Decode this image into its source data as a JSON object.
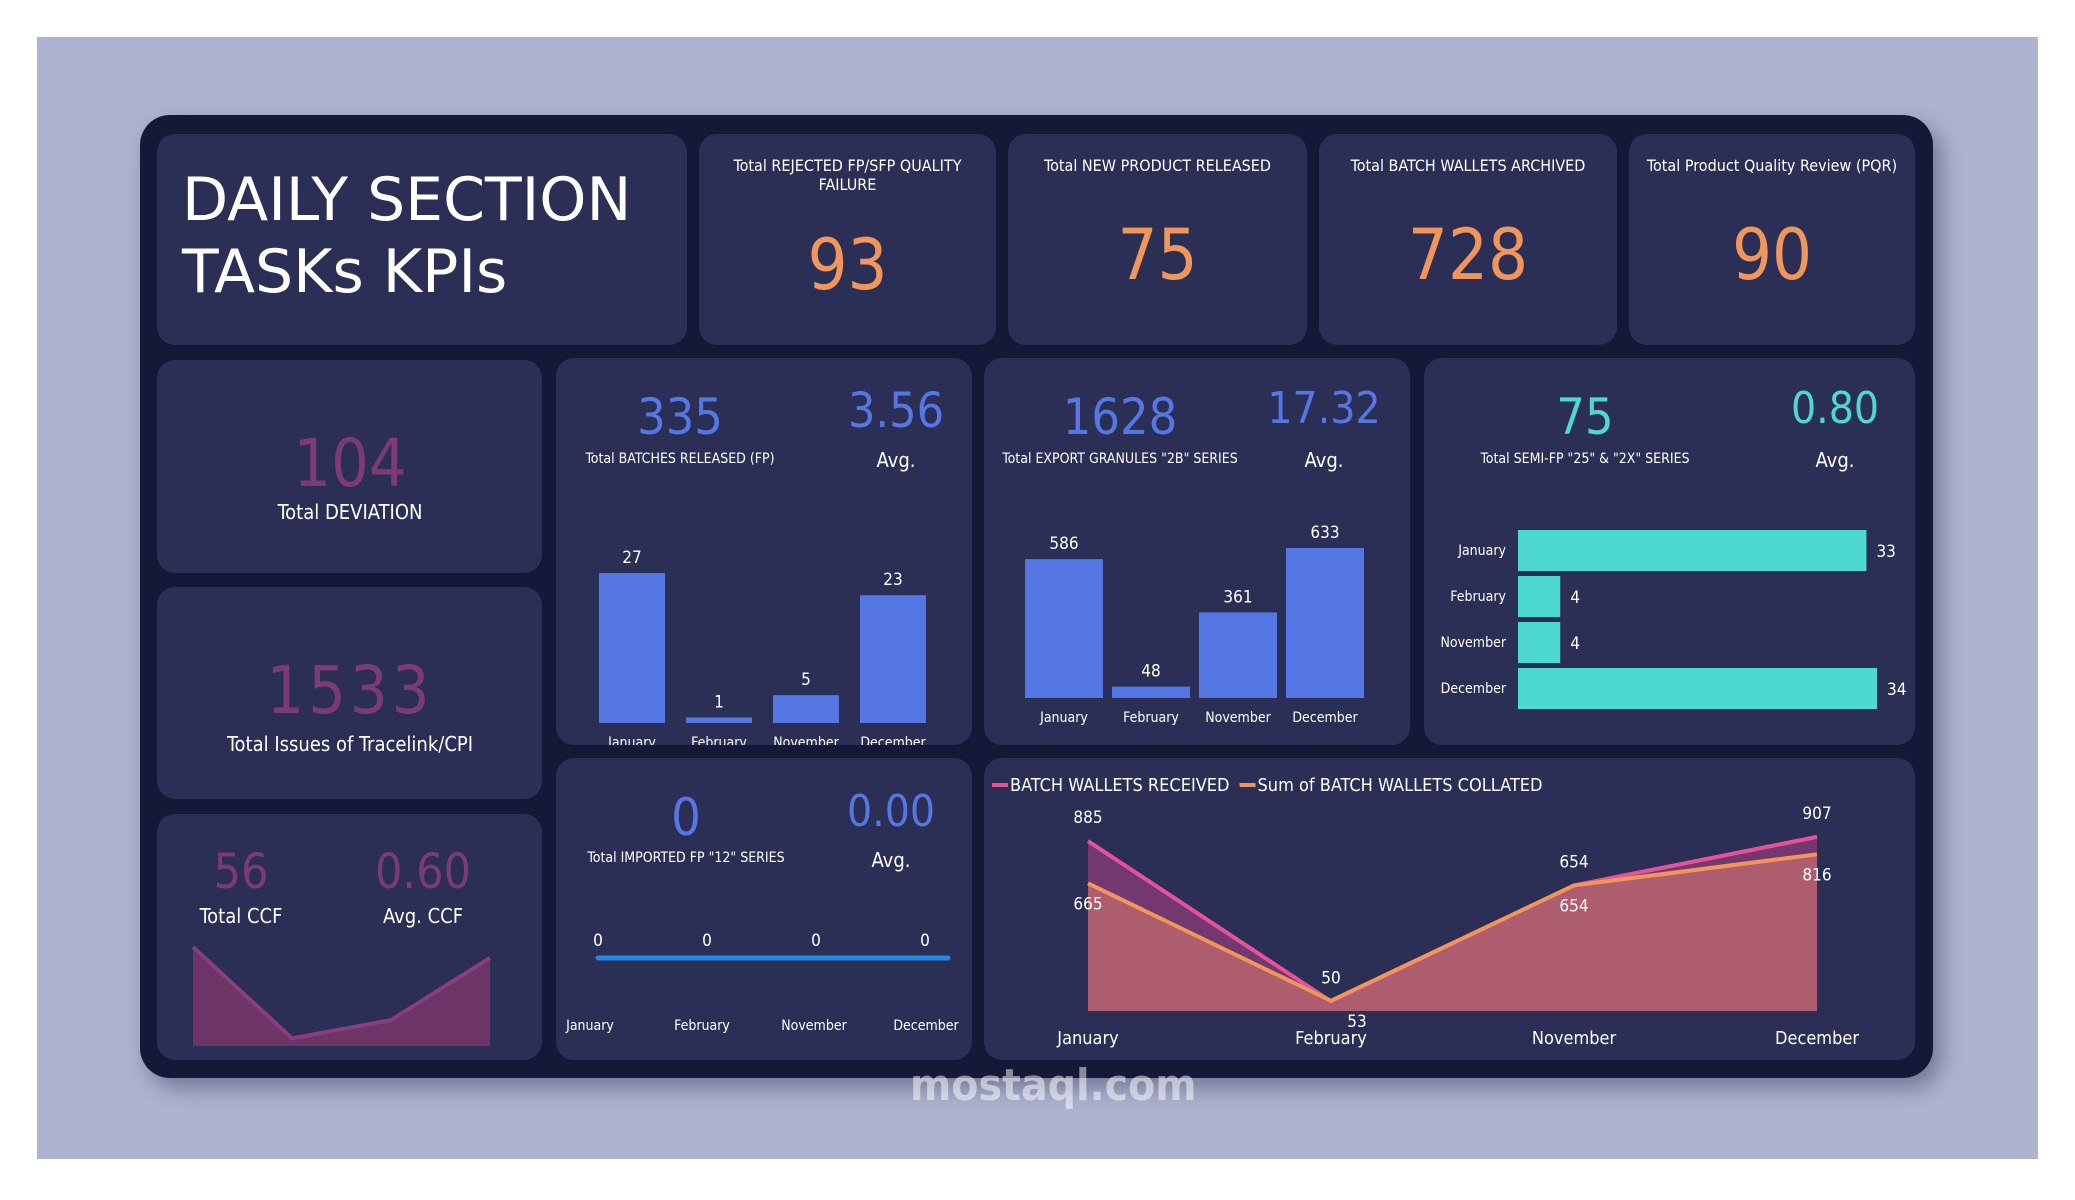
{
  "title": "DAILY SECTION TASKs KPIs",
  "kpis": [
    {
      "label": "Total REJECTED FP/SFP QUALITY FAILURE",
      "value": "93"
    },
    {
      "label": "Total NEW PRODUCT RELEASED",
      "value": "75"
    },
    {
      "label": "Total BATCH WALLETS ARCHIVED",
      "value": "728"
    },
    {
      "label": "Total Product Quality Review (PQR)",
      "value": "90"
    }
  ],
  "deviation": {
    "value": "104",
    "label": "Total DEVIATION"
  },
  "tracelink": {
    "value": "1533",
    "label": "Total Issues of Tracelink/CPI"
  },
  "ccf": {
    "total": "56",
    "total_label": "Total CCF",
    "avg": "0.60",
    "avg_label": "Avg. CCF"
  },
  "batches": {
    "total": "335",
    "total_label": "Total BATCHES RELEASED (FP)",
    "avg": "3.56",
    "avg_label": "Avg."
  },
  "export": {
    "total": "1628",
    "total_label": "Total EXPORT GRANULES \"2B\" SERIES",
    "avg": "17.32",
    "avg_label": "Avg."
  },
  "semi": {
    "total": "75",
    "total_label": "Total SEMI-FP \"25\" & \"2X\" SERIES",
    "avg": "0.80",
    "avg_label": "Avg."
  },
  "imported": {
    "total": "0",
    "total_label": "Total IMPORTED FP \"12\" SERIES",
    "avg": "0.00",
    "avg_label": "Avg."
  },
  "colors": {
    "bar_blue": "#5577e3",
    "teal": "#4dd9cf",
    "orange": "#f0965a",
    "pink": "#e4529a",
    "magenta": "#7b3b73",
    "line_blue": "#1e88e5"
  },
  "chart_data": [
    {
      "type": "bar",
      "categories": [
        "January",
        "February",
        "November",
        "December"
      ],
      "values": [
        27,
        1,
        5,
        23
      ]
    },
    {
      "type": "bar",
      "categories": [
        "January",
        "February",
        "November",
        "December"
      ],
      "values": [
        586,
        48,
        361,
        633
      ]
    },
    {
      "type": "bar",
      "orientation": "horizontal",
      "categories": [
        "January",
        "February",
        "November",
        "December"
      ],
      "values": [
        33,
        4,
        4,
        34
      ]
    },
    {
      "type": "line",
      "categories": [
        "January",
        "February",
        "November",
        "December"
      ],
      "values": [
        0,
        0,
        0,
        0
      ]
    },
    {
      "type": "area",
      "categories": [
        "January",
        "February",
        "November",
        "December"
      ],
      "values": [
        26,
        1,
        6,
        23
      ]
    },
    {
      "type": "area",
      "categories": [
        "January",
        "February",
        "November",
        "December"
      ],
      "legend": "top-left",
      "series": [
        {
          "name": "BATCH WALLETS RECEIVED",
          "values": [
            885,
            50,
            654,
            907
          ]
        },
        {
          "name": "Sum of BATCH WALLETS COLLATED",
          "values": [
            665,
            53,
            654,
            816
          ]
        }
      ]
    }
  ],
  "watermark": "mostaql.com"
}
